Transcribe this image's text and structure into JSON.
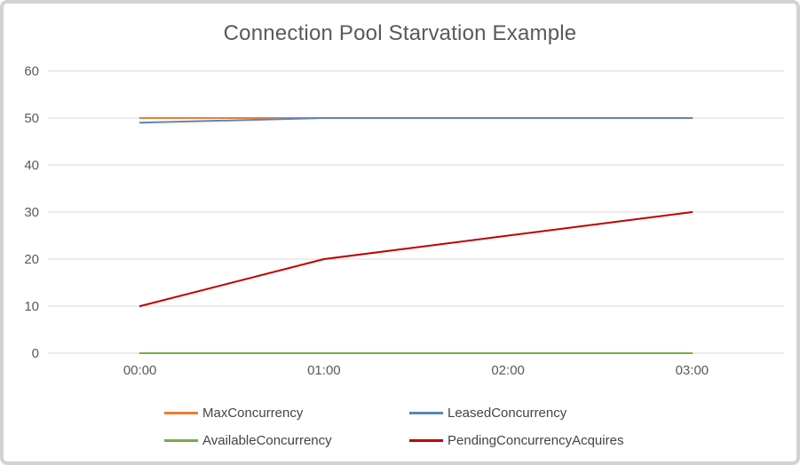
{
  "frame": {
    "border_color": "#d3d3d3",
    "background_color": "#ffffff"
  },
  "chart_data": {
    "type": "line",
    "title": "Connection Pool Starvation Example",
    "title_color": "#595959",
    "xlabel": "",
    "ylabel": "",
    "categories": [
      "00:00",
      "01:00",
      "02:00",
      "03:00"
    ],
    "series": [
      {
        "name": "MaxConcurrency",
        "color": "#ED7D31",
        "values": [
          50,
          50,
          50,
          50
        ]
      },
      {
        "name": "LeasedConcurrency",
        "color": "#5B87B7",
        "values": [
          49,
          50,
          50,
          50
        ]
      },
      {
        "name": "AvailableConcurrency",
        "color": "#70AD47",
        "values": [
          0,
          0,
          0,
          0
        ]
      },
      {
        "name": "PendingConcurrencyAcquires",
        "color": "#C00000",
        "values": [
          10,
          20,
          25,
          30
        ]
      }
    ],
    "ylim": [
      0,
      60
    ],
    "yticks": [
      0,
      10,
      20,
      30,
      40,
      50,
      60
    ],
    "grid": "horizontal",
    "gridline_color": "#d9d9d9",
    "axis_label_color": "#595959",
    "legend_position": "bottom",
    "legend_rows": [
      [
        "MaxConcurrency",
        "LeasedConcurrency"
      ],
      [
        "AvailableConcurrency",
        "PendingConcurrencyAcquires"
      ]
    ]
  }
}
